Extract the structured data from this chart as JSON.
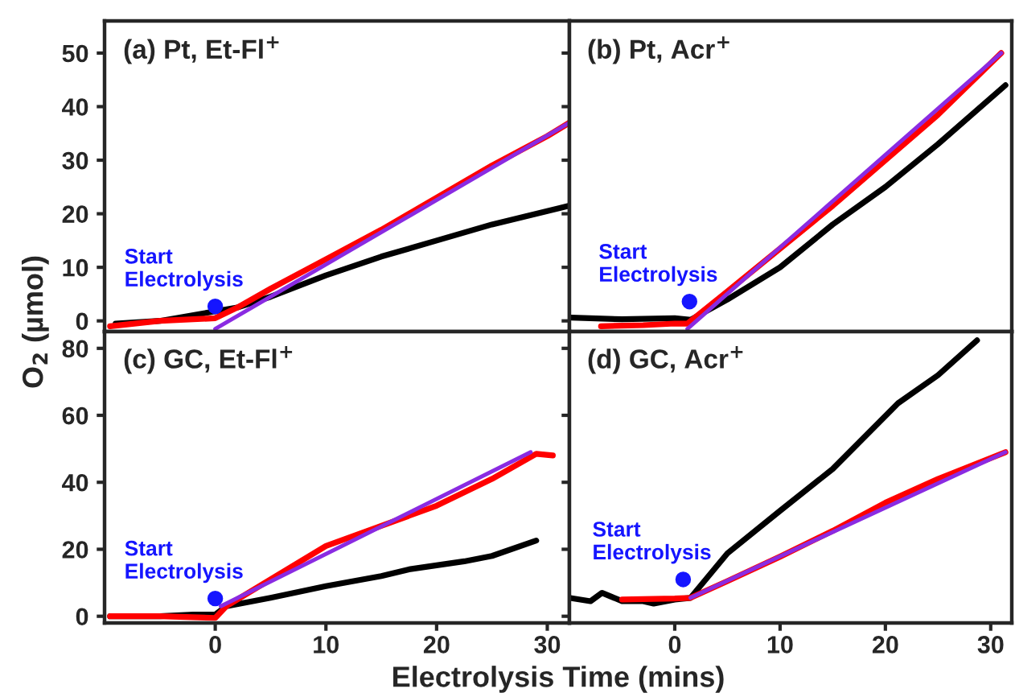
{
  "chart_data": [
    {
      "type": "line",
      "title": "(a) Pt, Et-Fl$^{+}$",
      "ylabel": "O$_{2}$ (µmol)",
      "xlim": [
        -10,
        32
      ],
      "ylim": [
        -2,
        56
      ],
      "xticks": [
        0,
        10,
        20,
        30
      ],
      "yticks": [
        0,
        10,
        20,
        30,
        40,
        50
      ],
      "tick_labels": "y",
      "grid": false,
      "legend": false,
      "annotations": [
        {
          "text": "Start\nElectrolysis",
          "x": 0,
          "y": 2.7
        }
      ],
      "series": [
        {
          "color": "#000000",
          "x": [
            -9,
            -5,
            0,
            2,
            5,
            10,
            15,
            20,
            25,
            30,
            32
          ],
          "values": [
            -0.5,
            0,
            null,
            2.5,
            4.5,
            8.5,
            12,
            15,
            18,
            20.5,
            21.5
          ]
        },
        {
          "color": "#ff0000",
          "x": [
            -9.5,
            -5,
            0,
            2,
            5,
            10,
            15,
            20,
            25,
            30,
            32
          ],
          "values": [
            -1,
            0,
            0.5,
            2.5,
            6,
            11.5,
            17,
            23,
            29,
            34.5,
            37
          ]
        },
        {
          "color": "#8a2be2",
          "x": [
            0,
            32
          ],
          "values": [
            -1.5,
            37
          ]
        }
      ]
    },
    {
      "type": "line",
      "title": "(b) Pt, Acr$^{+}$",
      "xlim": [
        -10,
        32
      ],
      "ylim": [
        -2,
        56
      ],
      "xticks": [
        0,
        10,
        20,
        30
      ],
      "yticks": [
        0,
        10,
        20,
        30,
        40,
        50
      ],
      "tick_labels": false,
      "grid": false,
      "legend": false,
      "annotations": [
        {
          "text": "Start\nElectrolysis",
          "x": 1.4,
          "y": 3.6
        }
      ],
      "series": [
        {
          "color": "#000000",
          "x": [
            -9.8,
            -5,
            0,
            1.5,
            5,
            10,
            15,
            20,
            25,
            31.4
          ],
          "values": [
            0.6,
            0.3,
            0.5,
            0.2,
            4,
            10,
            18,
            25,
            33,
            44
          ]
        },
        {
          "color": "#ff0000",
          "x": [
            -7,
            -3,
            0,
            1.2,
            5,
            10,
            15,
            20,
            25,
            31
          ],
          "values": [
            -1,
            -0.8,
            -0.5,
            -0.5,
            5.5,
            13.5,
            21.5,
            30,
            38.5,
            50
          ]
        },
        {
          "color": "#8a2be2",
          "x": [
            1.2,
            31
          ],
          "values": [
            -1.5,
            50
          ]
        }
      ]
    },
    {
      "type": "line",
      "title": "(c) GC, Et-Fl$^{+}$",
      "xlabel": "Electrolysis Time (mins)",
      "xlim": [
        -10,
        32
      ],
      "ylim": [
        -2,
        85
      ],
      "xticks": [
        0,
        10,
        20,
        30
      ],
      "yticks": [
        0,
        20,
        40,
        60,
        80
      ],
      "grid": false,
      "legend": false,
      "annotations": [
        {
          "text": "Start\nElectrolysis",
          "x": 0,
          "y": 5.3
        }
      ],
      "series": [
        {
          "color": "#000000",
          "x": [
            -9.5,
            -5,
            -2,
            0,
            1,
            5,
            10,
            15,
            17.5,
            22.5,
            25,
            29
          ],
          "values": [
            0,
            0,
            0.5,
            0.5,
            3,
            5.5,
            9,
            12,
            14,
            16.4,
            18,
            22.6
          ]
        },
        {
          "color": "#ff0000",
          "x": [
            -9.5,
            -5,
            0,
            1,
            5,
            10,
            15,
            20,
            25,
            29,
            30.5
          ],
          "values": [
            0,
            0,
            -0.5,
            3,
            11,
            21,
            27,
            33,
            41,
            48.5,
            48
          ]
        },
        {
          "color": "#8a2be2",
          "x": [
            0.5,
            28.5
          ],
          "values": [
            3,
            49
          ]
        }
      ]
    },
    {
      "type": "line",
      "title": "(d) GC, Acr$^{+}$",
      "xlim": [
        -10,
        32
      ],
      "ylim": [
        -2,
        85
      ],
      "xticks": [
        0,
        10,
        20,
        30
      ],
      "yticks": [
        0,
        20,
        40,
        60,
        80
      ],
      "tick_labels": "x",
      "grid": false,
      "legend": false,
      "annotations": [
        {
          "text": "Start\nElectrolysis",
          "x": 0.8,
          "y": 11
        }
      ],
      "series": [
        {
          "color": "#000000",
          "x": [
            -9.8,
            -8,
            -6.9,
            -5,
            -3,
            -2,
            0,
            1.5,
            5,
            10,
            15,
            21.2,
            25,
            28.7
          ],
          "values": [
            5.4,
            4.5,
            7,
            4.5,
            4.5,
            3.8,
            5,
            5.5,
            18.8,
            31.5,
            44,
            63.6,
            72,
            82.4
          ]
        },
        {
          "color": "#ff0000",
          "x": [
            -5,
            0,
            1.5,
            5,
            10,
            15,
            20,
            25,
            31.4
          ],
          "values": [
            5,
            5.3,
            5.5,
            10.5,
            17.8,
            25.5,
            33.9,
            41,
            49
          ]
        },
        {
          "color": "#8a2be2",
          "x": [
            1.5,
            31.4
          ],
          "values": [
            5.5,
            49
          ]
        }
      ]
    }
  ]
}
